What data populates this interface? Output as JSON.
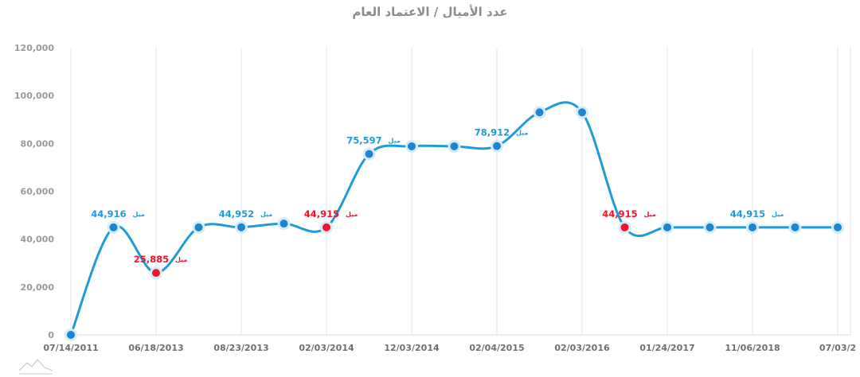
{
  "chart_data": {
    "type": "line",
    "title": "عدد الأميال / الاعتماد العام",
    "xlabel": "",
    "ylabel": "",
    "ylim": [
      0,
      120000
    ],
    "y_ticks": [
      "0",
      "20,000",
      "40,000",
      "60,000",
      "80,000",
      "100,000",
      "120,000"
    ],
    "x_tick_labels": [
      "07/14/2011",
      "06/18/2013",
      "08/23/2013",
      "02/03/2014",
      "12/03/2014",
      "02/04/2015",
      "02/03/2016",
      "01/24/2017",
      "11/06/2018",
      "07/03/2"
    ],
    "grid": "vertical",
    "legend": "none",
    "unit_label": "ميل",
    "colors": {
      "line": "#1f9bd7",
      "normal_point": "#1d86d2",
      "highlight_point": "#f0142c",
      "label_blue": "#1f9bd7",
      "label_red": "#f0142c"
    },
    "series": [
      {
        "values": [
          0,
          44916,
          25885,
          44916,
          44952,
          46500,
          44915,
          75597,
          78800,
          78800,
          78912,
          93000,
          93000,
          44915,
          44915,
          44915,
          44915,
          44915,
          44915
        ],
        "highlighted_points": [
          2,
          6,
          13
        ],
        "data_labels": [
          {
            "point": 1,
            "text": "44,916",
            "color": "blue"
          },
          {
            "point": 2,
            "text": "25,885",
            "color": "red"
          },
          {
            "point": 4,
            "text": "44,952",
            "color": "blue"
          },
          {
            "point": 6,
            "text": "44,915",
            "color": "red"
          },
          {
            "point": 7,
            "text": "75,597",
            "color": "blue"
          },
          {
            "point": 10,
            "text": "78,912",
            "color": "blue"
          },
          {
            "point": 13,
            "text": "44,915",
            "color": "red"
          },
          {
            "point": 16,
            "text": "44,915",
            "color": "blue"
          }
        ]
      }
    ]
  }
}
